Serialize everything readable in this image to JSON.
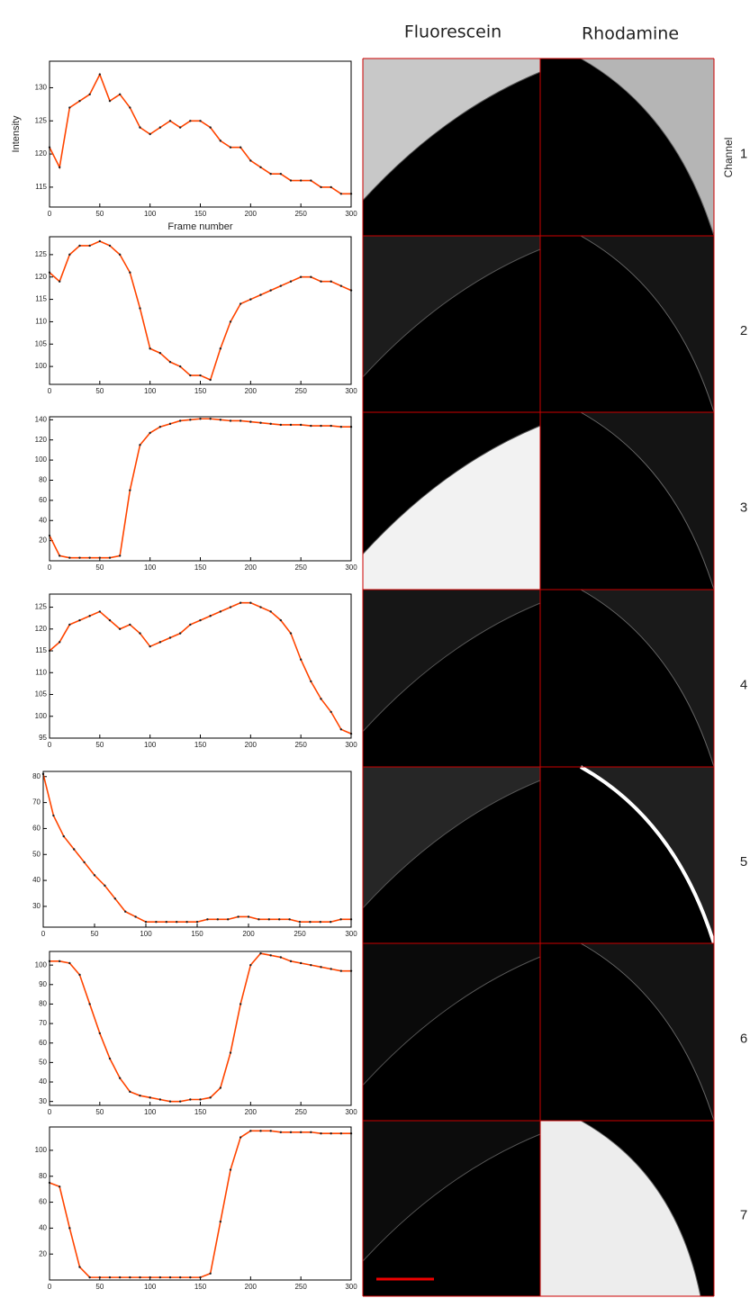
{
  "columns": [
    "Fluorescein",
    "Rhodamine"
  ],
  "row_header": "Channel",
  "rows": [
    "1",
    "2",
    "3",
    "4",
    "5",
    "6",
    "7"
  ],
  "chart_data": [
    {
      "type": "line",
      "x_label": "Frame number",
      "y_label": "Intensity",
      "x": [
        0,
        10,
        20,
        30,
        40,
        50,
        60,
        70,
        80,
        90,
        100,
        110,
        120,
        130,
        140,
        150,
        160,
        170,
        180,
        190,
        200,
        210,
        220,
        230,
        240,
        250,
        260,
        270,
        280,
        290,
        300
      ],
      "values": [
        121,
        118,
        127,
        128,
        129,
        132,
        128,
        129,
        127,
        124,
        123,
        124,
        125,
        124,
        125,
        125,
        124,
        122,
        121,
        121,
        119,
        118,
        117,
        117,
        116,
        116,
        116,
        115,
        115,
        114,
        114
      ],
      "color": "#ff4500",
      "xlim": [
        0,
        300
      ],
      "xticks": [
        0,
        50,
        100,
        150,
        200,
        250,
        300
      ],
      "ylim": [
        112,
        134
      ],
      "yticks": [
        115,
        120,
        125,
        130
      ]
    },
    {
      "type": "line",
      "x": [
        0,
        10,
        20,
        30,
        40,
        50,
        60,
        70,
        80,
        90,
        100,
        110,
        120,
        130,
        140,
        150,
        160,
        170,
        180,
        190,
        200,
        210,
        220,
        230,
        240,
        250,
        260,
        270,
        280,
        290,
        300
      ],
      "values": [
        121,
        119,
        125,
        127,
        127,
        128,
        127,
        125,
        121,
        113,
        104,
        103,
        101,
        100,
        98,
        98,
        97,
        104,
        110,
        114,
        115,
        116,
        117,
        118,
        119,
        120,
        120,
        119,
        119,
        118,
        117
      ],
      "color": "#ff4500",
      "xlim": [
        0,
        300
      ],
      "xticks": [
        0,
        50,
        100,
        150,
        200,
        250,
        300
      ],
      "ylim": [
        96,
        129
      ],
      "yticks": [
        100,
        105,
        110,
        115,
        120,
        125
      ]
    },
    {
      "type": "line",
      "x": [
        0,
        10,
        20,
        30,
        40,
        50,
        60,
        70,
        80,
        90,
        100,
        110,
        120,
        130,
        140,
        150,
        160,
        170,
        180,
        190,
        200,
        210,
        220,
        230,
        240,
        250,
        260,
        270,
        280,
        290,
        300
      ],
      "values": [
        25,
        5,
        3,
        3,
        3,
        3,
        3,
        5,
        70,
        115,
        127,
        133,
        136,
        139,
        140,
        141,
        141,
        140,
        139,
        139,
        138,
        137,
        136,
        135,
        135,
        135,
        134,
        134,
        134,
        133,
        133
      ],
      "color": "#ff4500",
      "xlim": [
        0,
        300
      ],
      "xticks": [
        0,
        50,
        100,
        150,
        200,
        250,
        300
      ],
      "ylim": [
        0,
        143
      ],
      "yticks": [
        20,
        40,
        60,
        80,
        100,
        120,
        140
      ]
    },
    {
      "type": "line",
      "x": [
        0,
        10,
        20,
        30,
        40,
        50,
        60,
        70,
        80,
        90,
        100,
        110,
        120,
        130,
        140,
        150,
        160,
        170,
        180,
        190,
        200,
        210,
        220,
        230,
        240,
        250,
        260,
        270,
        280,
        290,
        300
      ],
      "values": [
        115,
        117,
        121,
        122,
        123,
        124,
        122,
        120,
        121,
        119,
        116,
        117,
        118,
        119,
        121,
        122,
        123,
        124,
        125,
        126,
        126,
        125,
        124,
        122,
        119,
        113,
        108,
        104,
        101,
        97,
        96
      ],
      "color": "#ff4500",
      "xlim": [
        0,
        300
      ],
      "xticks": [
        0,
        50,
        100,
        150,
        200,
        250,
        300
      ],
      "ylim": [
        95,
        128
      ],
      "yticks": [
        95,
        100,
        105,
        110,
        115,
        120,
        125
      ]
    },
    {
      "type": "line",
      "x": [
        0,
        10,
        20,
        30,
        40,
        50,
        60,
        70,
        80,
        90,
        100,
        110,
        120,
        130,
        140,
        150,
        160,
        170,
        180,
        190,
        200,
        210,
        220,
        230,
        240,
        250,
        260,
        270,
        280,
        290,
        300
      ],
      "values": [
        81,
        65,
        57,
        52,
        47,
        42,
        38,
        33,
        28,
        26,
        24,
        24,
        24,
        24,
        24,
        24,
        25,
        25,
        25,
        26,
        26,
        25,
        25,
        25,
        25,
        24,
        24,
        24,
        24,
        25,
        25
      ],
      "color": "#ff4500",
      "xlim": [
        0,
        300
      ],
      "xticks": [
        0,
        50,
        100,
        150,
        200,
        250,
        300
      ],
      "ylim": [
        22,
        82
      ],
      "yticks": [
        30,
        40,
        50,
        60,
        70,
        80
      ]
    },
    {
      "type": "line",
      "x": [
        0,
        10,
        20,
        30,
        40,
        50,
        60,
        70,
        80,
        90,
        100,
        110,
        120,
        130,
        140,
        150,
        160,
        170,
        180,
        190,
        200,
        210,
        220,
        230,
        240,
        250,
        260,
        270,
        280,
        290,
        300
      ],
      "values": [
        102,
        102,
        101,
        95,
        80,
        65,
        52,
        42,
        35,
        33,
        32,
        31,
        30,
        30,
        31,
        31,
        32,
        37,
        55,
        80,
        100,
        106,
        105,
        104,
        102,
        101,
        100,
        99,
        98,
        97,
        97
      ],
      "color": "#ff4500",
      "xlim": [
        0,
        300
      ],
      "xticks": [
        0,
        50,
        100,
        150,
        200,
        250,
        300
      ],
      "ylim": [
        28,
        107
      ],
      "yticks": [
        30,
        40,
        50,
        60,
        70,
        80,
        90,
        100
      ]
    },
    {
      "type": "line",
      "x": [
        0,
        10,
        20,
        30,
        40,
        50,
        60,
        70,
        80,
        90,
        100,
        110,
        120,
        130,
        140,
        150,
        160,
        170,
        180,
        190,
        200,
        210,
        220,
        230,
        240,
        250,
        260,
        270,
        280,
        290,
        300
      ],
      "values": [
        75,
        72,
        40,
        10,
        2,
        2,
        2,
        2,
        2,
        2,
        2,
        2,
        2,
        2,
        2,
        2,
        5,
        45,
        85,
        110,
        115,
        115,
        115,
        114,
        114,
        114,
        114,
        113,
        113,
        113,
        113
      ],
      "color": "#ff4500",
      "xlim": [
        0,
        300
      ],
      "xticks": [
        0,
        50,
        100,
        150,
        200,
        250,
        300
      ],
      "ylim": [
        0,
        118
      ],
      "yticks": [
        20,
        40,
        60,
        80,
        100
      ]
    }
  ]
}
